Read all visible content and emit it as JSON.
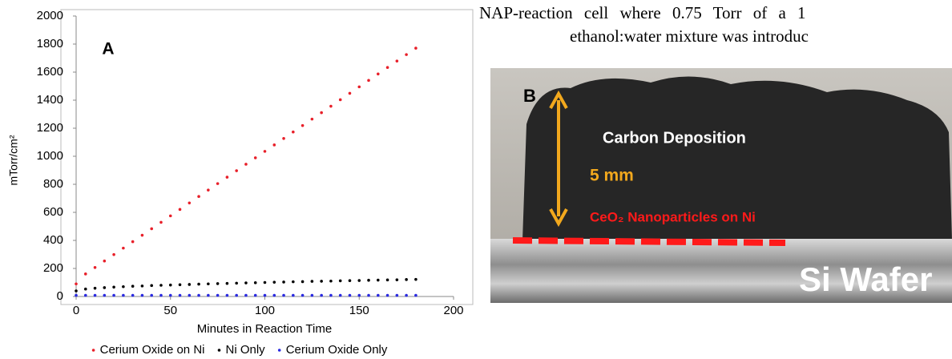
{
  "chart_data": {
    "type": "scatter",
    "panel_label": "A",
    "ylabel": "mTorr/cm²",
    "xlabel": "Minutes in Reaction Time",
    "x": [
      0,
      5,
      10,
      15,
      20,
      25,
      30,
      35,
      40,
      45,
      50,
      55,
      60,
      65,
      70,
      75,
      80,
      85,
      90,
      95,
      100,
      105,
      110,
      115,
      120,
      125,
      130,
      135,
      140,
      145,
      150,
      155,
      160,
      165,
      170,
      175,
      180
    ],
    "series": [
      {
        "name": "Cerium Oxide on Ni",
        "color": "#e8202a",
        "values": [
          90,
          161,
          207,
          253,
          299,
          345,
          391,
          437,
          483,
          529,
          575,
          621,
          667,
          713,
          759,
          805,
          851,
          897,
          943,
          989,
          1035,
          1081,
          1127,
          1173,
          1219,
          1265,
          1311,
          1357,
          1403,
          1449,
          1495,
          1541,
          1587,
          1633,
          1679,
          1725,
          1771
        ]
      },
      {
        "name": "Ni Only",
        "color": "#000000",
        "values": [
          40,
          53,
          59,
          63,
          67,
          70,
          73,
          75,
          78,
          80,
          82,
          84,
          86,
          88,
          90,
          92,
          93,
          95,
          97,
          98,
          100,
          102,
          103,
          105,
          106,
          108,
          109,
          110,
          112,
          113,
          114,
          116,
          117,
          118,
          119,
          121,
          122
        ]
      },
      {
        "name": "Cerium Oxide Only",
        "color": "#2a2ae0",
        "values": [
          8,
          8,
          8,
          8,
          8,
          8,
          8,
          8,
          8,
          8,
          8,
          8,
          8,
          8,
          8,
          8,
          8,
          8,
          8,
          8,
          8,
          8,
          8,
          8,
          8,
          8,
          8,
          8,
          8,
          8,
          8,
          8,
          8,
          8,
          8,
          8,
          8
        ]
      }
    ],
    "xlim": [
      0,
      200
    ],
    "xticks": [
      0,
      50,
      100,
      150,
      200
    ],
    "ylim": [
      0,
      2000
    ],
    "yticks": [
      0,
      200,
      400,
      600,
      800,
      1000,
      1200,
      1400,
      1600,
      1800,
      2000
    ],
    "grid": false,
    "legend": "bottom"
  },
  "text_lines": [
    "NAP-reaction cell where 0.75 Torr of a 1",
    "ethanol:water mixture was introduc"
  ],
  "photo": {
    "panel_label": "B",
    "top_label": "Carbon Deposition",
    "scale_label": "5 mm",
    "layer_label": "CeO₂ Nanoparticles on Ni",
    "substrate_label": "Si Wafer"
  }
}
